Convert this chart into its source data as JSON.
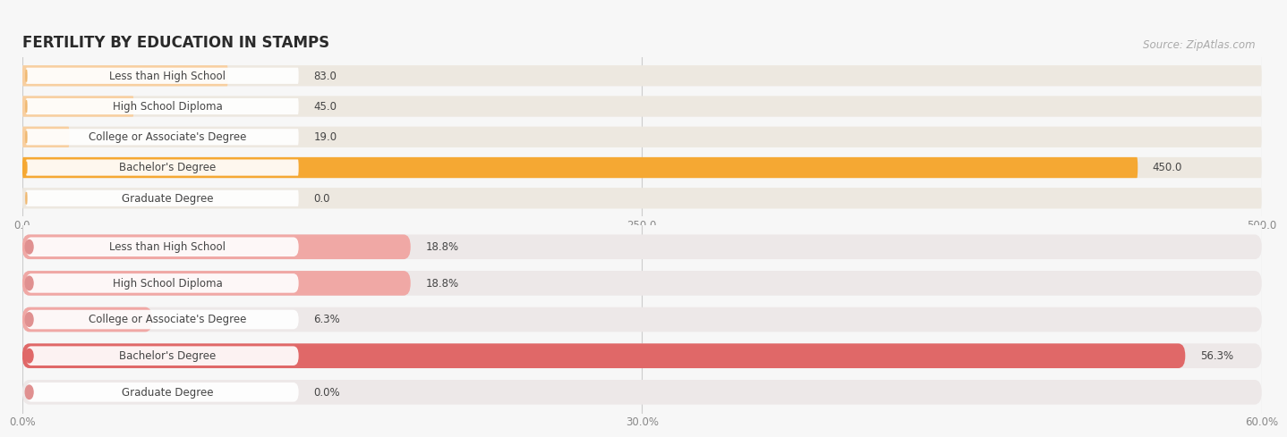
{
  "title": "FERTILITY BY EDUCATION IN STAMPS",
  "source": "Source: ZipAtlas.com",
  "chart1": {
    "categories": [
      "Less than High School",
      "High School Diploma",
      "College or Associate's Degree",
      "Bachelor's Degree",
      "Graduate Degree"
    ],
    "values": [
      83.0,
      45.0,
      19.0,
      450.0,
      0.0
    ],
    "value_labels": [
      "83.0",
      "45.0",
      "19.0",
      "450.0",
      "0.0"
    ],
    "xlim": [
      0,
      500
    ],
    "xticks": [
      0.0,
      250.0,
      500.0
    ],
    "xtick_labels": [
      "0.0",
      "250.0",
      "500.0"
    ],
    "bar_color_normal": "#f8cfa0",
    "bar_color_highlight": "#f5a833",
    "bar_bg_color": "#ede8e0",
    "pill_color": "#ffffff",
    "cap_color_normal": "#f0b870",
    "cap_color_highlight": "#f5a833",
    "highlight_index": 3
  },
  "chart2": {
    "categories": [
      "Less than High School",
      "High School Diploma",
      "College or Associate's Degree",
      "Bachelor's Degree",
      "Graduate Degree"
    ],
    "values": [
      18.8,
      18.8,
      6.3,
      56.3,
      0.0
    ],
    "value_labels": [
      "18.8%",
      "18.8%",
      "6.3%",
      "56.3%",
      "0.0%"
    ],
    "xlim": [
      0,
      60
    ],
    "xticks": [
      0.0,
      30.0,
      60.0
    ],
    "xtick_labels": [
      "0.0%",
      "30.0%",
      "60.0%"
    ],
    "bar_color_normal": "#f0a8a5",
    "bar_color_highlight": "#e06868",
    "bar_bg_color": "#ede8e8",
    "pill_color": "#ffffff",
    "cap_color_normal": "#e09090",
    "cap_color_highlight": "#e06868",
    "highlight_index": 3
  },
  "bg_color": "#f7f7f7",
  "label_color": "#444444",
  "tick_color": "#888888",
  "source_color": "#aaaaaa",
  "grid_color": "#cccccc",
  "title_color": "#2a2a2a",
  "title_fontsize": 12,
  "label_fontsize": 8.5,
  "value_fontsize": 8.5,
  "source_fontsize": 8.5,
  "bar_height": 0.68
}
